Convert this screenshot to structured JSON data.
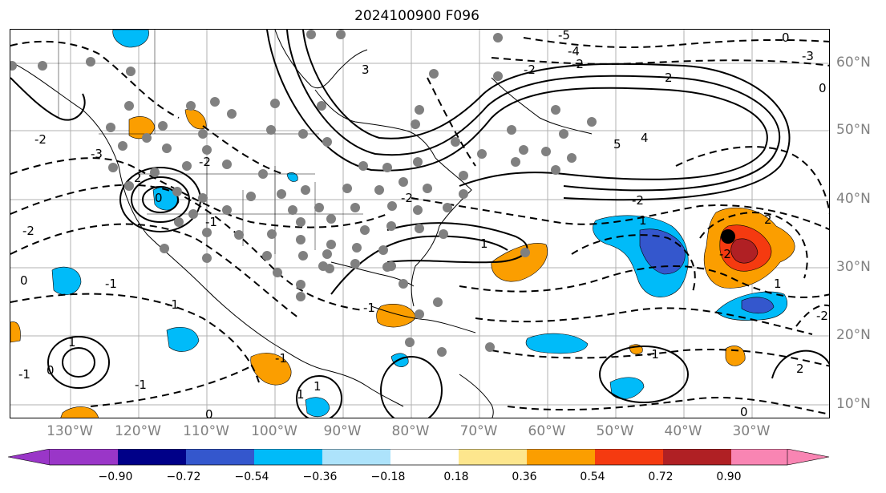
{
  "title": "2024100900 F096",
  "lon_labels": [
    "130°W",
    "120°W",
    "110°W",
    "100°W",
    "90°W",
    "80°W",
    "70°W",
    "60°W",
    "50°W",
    "40°W",
    "30°W"
  ],
  "lat_labels": [
    "60°N",
    "50°N",
    "40°N",
    "30°N",
    "20°N",
    "10°N"
  ],
  "colorbar": {
    "labels": [
      "−0.90",
      "−0.72",
      "−0.54",
      "−0.36",
      "−0.18",
      "0.18",
      "0.36",
      "0.54",
      "0.72",
      "0.90"
    ],
    "colors": [
      "#9a36c8",
      "#000088",
      "#3457cd",
      "#00bbf9",
      "#ade3fb",
      "#ffffff",
      "#fde68d",
      "#fb9e00",
      "#f53a10",
      "#b02024",
      "#f985b3"
    ]
  },
  "contour_labels": [
    "-5",
    "-4",
    "0",
    "-3",
    "3",
    "2",
    "-2",
    "0",
    "-2",
    "5",
    "4",
    "-2",
    "-3",
    "2",
    "-2",
    "-1",
    "0",
    "-1",
    "-1",
    "1",
    "-1",
    "-1",
    "0",
    "1",
    "-1",
    "-2",
    "-2",
    "-1",
    "-2",
    "1",
    "1",
    "2",
    "-2",
    "1",
    "-1",
    "2",
    "-2",
    "0",
    "0",
    "0",
    "1"
  ],
  "marker_color": "#000000"
}
